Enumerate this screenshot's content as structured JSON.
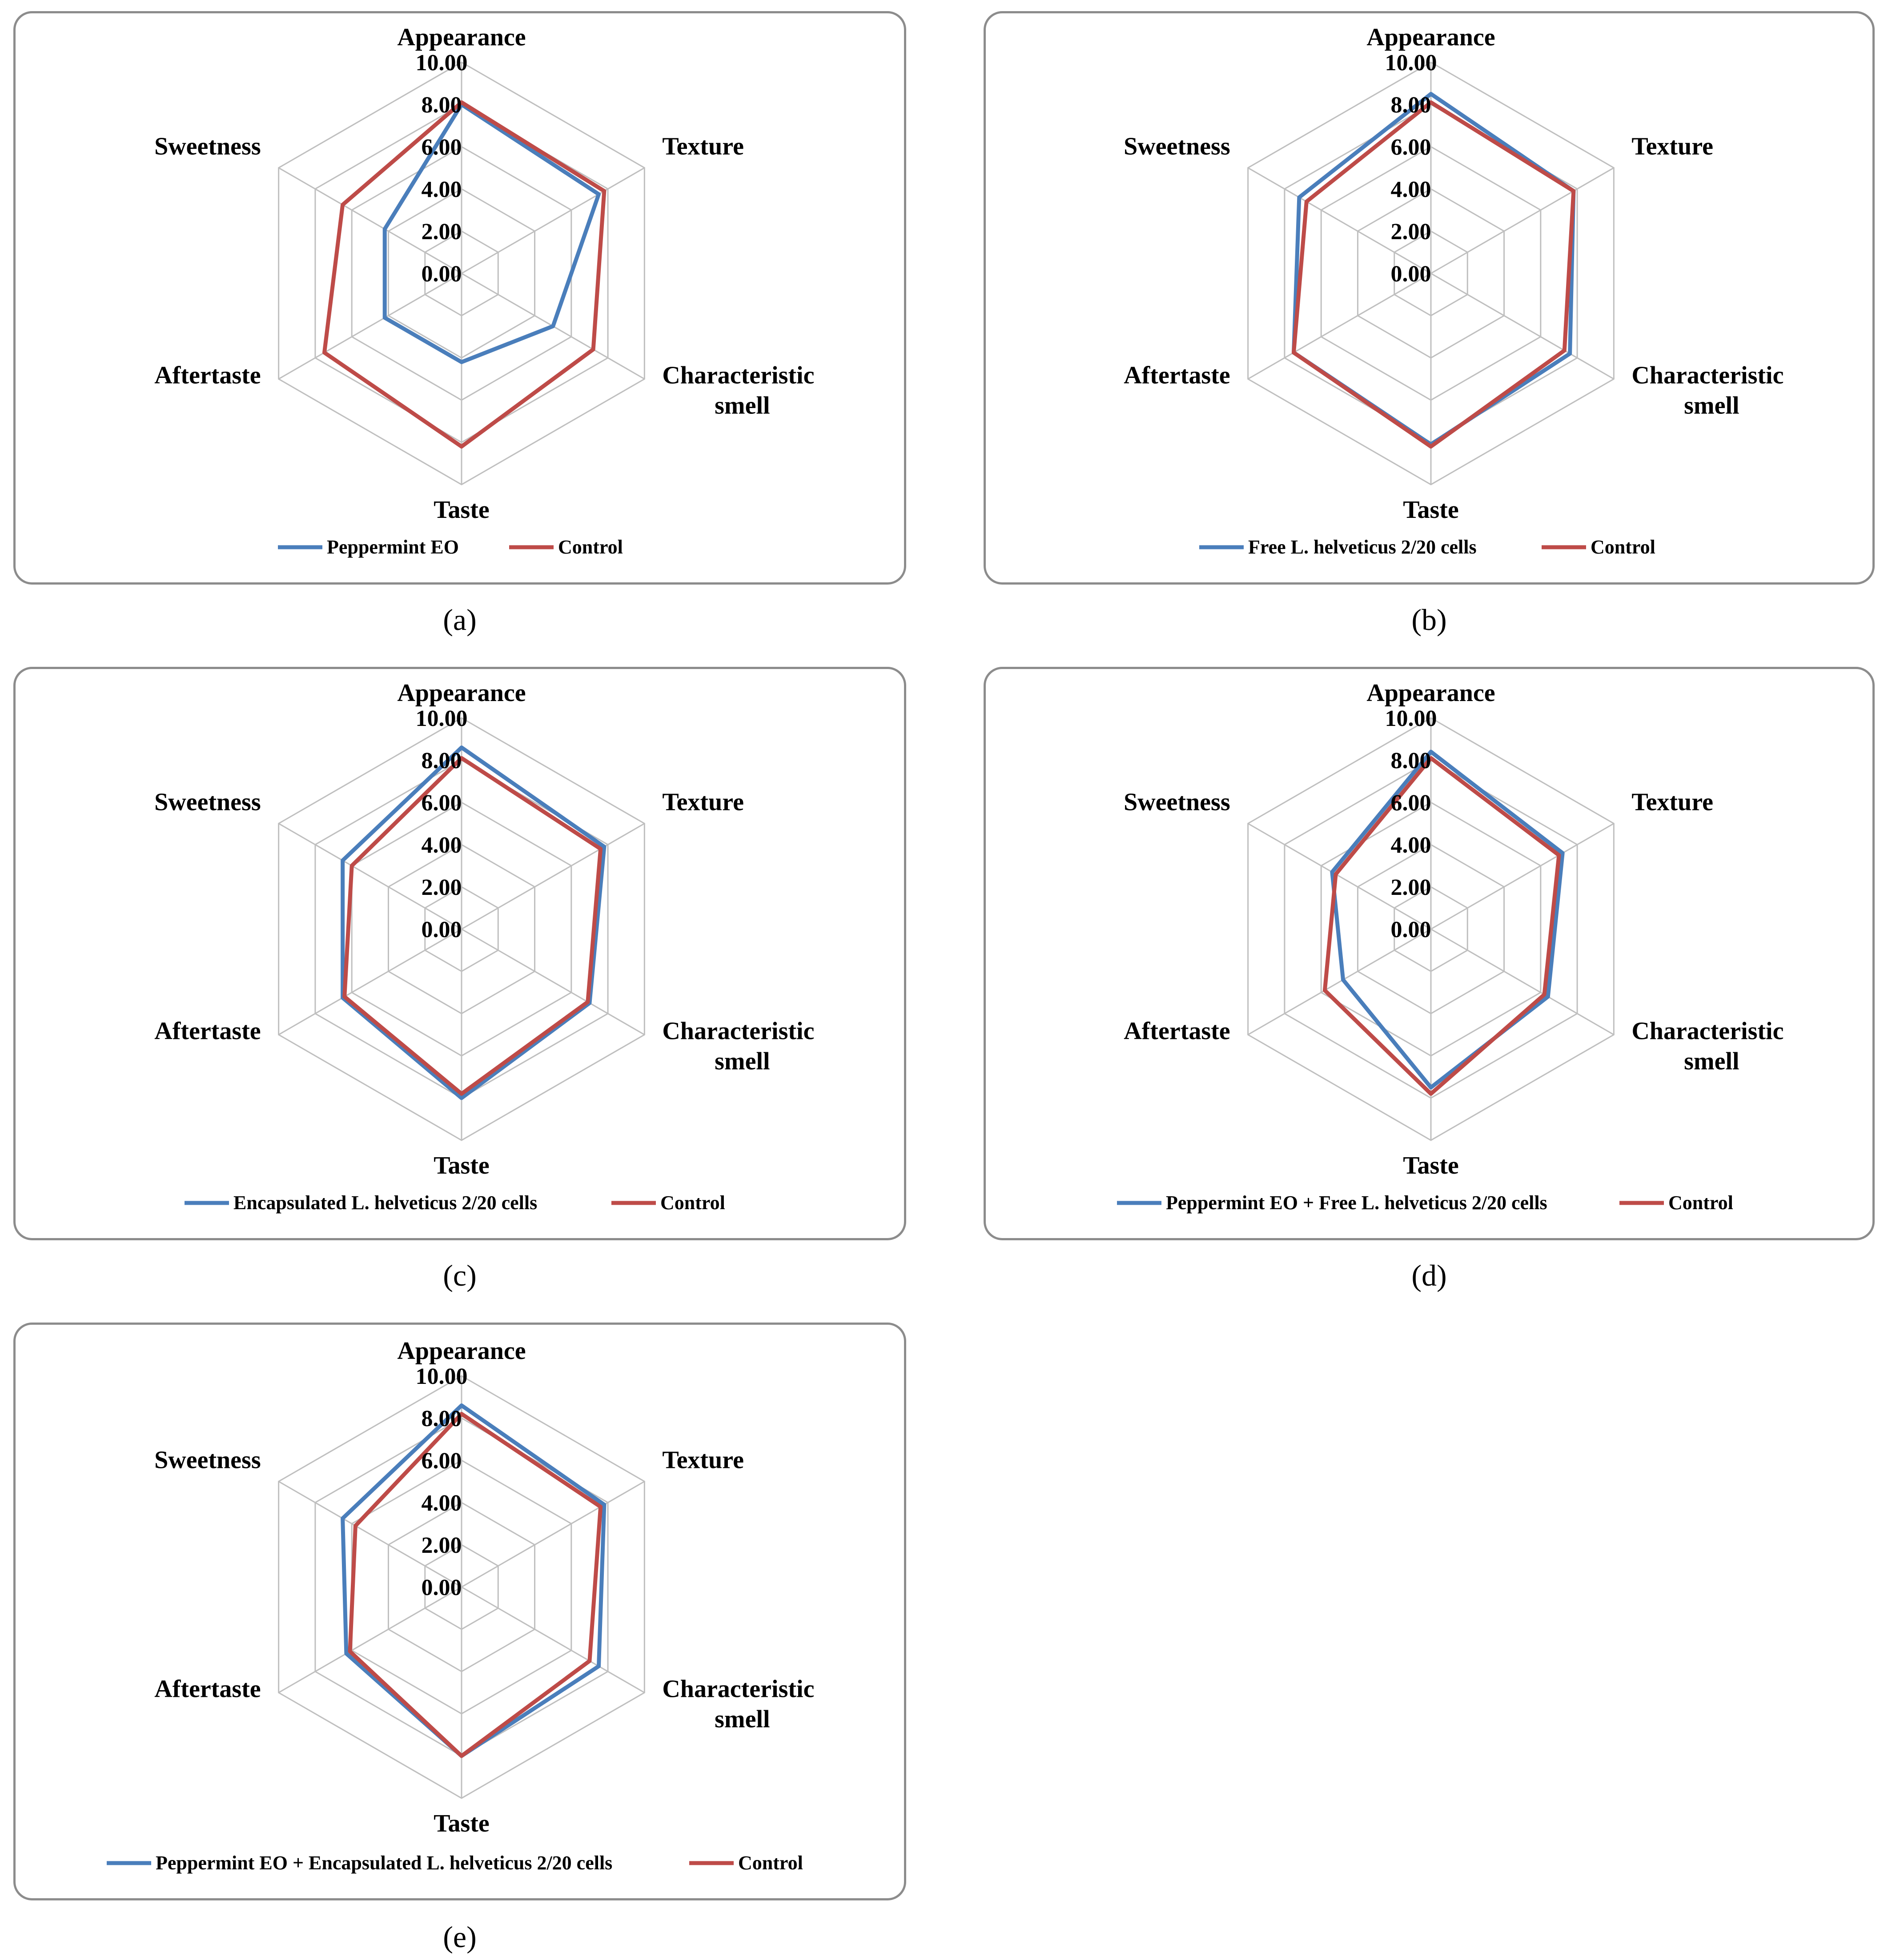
{
  "colors": {
    "series": "#4a7ebb",
    "control": "#be4b48",
    "grid": "#bfbfbf",
    "frame": "#8c8c8c"
  },
  "chart_data": [
    {
      "panel": "a",
      "type": "radar",
      "axes": [
        "Appearance",
        "Texture",
        "Characteristic smell",
        "Taste",
        "Aftertaste",
        "Sweetness"
      ],
      "ticks": [
        "0.00",
        "2.00",
        "4.00",
        "6.00",
        "8.00",
        "10.00"
      ],
      "rlim": [
        0,
        10
      ],
      "series": [
        {
          "name": "Peppermint EO",
          "values": [
            8.0,
            7.5,
            5.0,
            4.2,
            4.2,
            4.2
          ]
        },
        {
          "name": "Control",
          "values": [
            8.1,
            7.8,
            7.2,
            8.2,
            7.5,
            6.5
          ]
        }
      ]
    },
    {
      "panel": "b",
      "type": "radar",
      "axes": [
        "Appearance",
        "Texture",
        "Characteristic smell",
        "Taste",
        "Aftertaste",
        "Sweetness"
      ],
      "ticks": [
        "0.00",
        "2.00",
        "4.00",
        "6.00",
        "8.00",
        "10.00"
      ],
      "rlim": [
        0,
        10
      ],
      "series": [
        {
          "name": "Free L. helveticus 2/20 cells",
          "values": [
            8.5,
            7.8,
            7.6,
            8.1,
            7.5,
            7.2
          ]
        },
        {
          "name": "Control",
          "values": [
            8.1,
            7.8,
            7.3,
            8.2,
            7.5,
            6.8
          ]
        }
      ]
    },
    {
      "panel": "c",
      "type": "radar",
      "axes": [
        "Appearance",
        "Texture",
        "Characteristic smell",
        "Taste",
        "Aftertaste",
        "Sweetness"
      ],
      "ticks": [
        "0.00",
        "2.00",
        "4.00",
        "6.00",
        "8.00",
        "10.00"
      ],
      "rlim": [
        0,
        10
      ],
      "series": [
        {
          "name": "Encapsulated L. helveticus 2/20 cells",
          "values": [
            8.6,
            7.8,
            7.0,
            8.0,
            6.5,
            6.5
          ]
        },
        {
          "name": "Control",
          "values": [
            8.1,
            7.6,
            6.9,
            7.8,
            6.4,
            6.0
          ]
        }
      ]
    },
    {
      "panel": "d",
      "type": "radar",
      "axes": [
        "Appearance",
        "Texture",
        "Characteristic smell",
        "Taste",
        "Aftertaste",
        "Sweetness"
      ],
      "ticks": [
        "0.00",
        "2.00",
        "4.00",
        "6.00",
        "8.00",
        "10.00"
      ],
      "rlim": [
        0,
        10
      ],
      "series": [
        {
          "name": "Peppermint EO + Free L. helveticus 2/20 cells",
          "values": [
            8.4,
            7.2,
            6.4,
            7.5,
            4.8,
            5.4
          ]
        },
        {
          "name": "Control",
          "values": [
            8.1,
            7.0,
            6.2,
            7.8,
            5.8,
            5.2
          ]
        }
      ]
    },
    {
      "panel": "e",
      "type": "radar",
      "axes": [
        "Appearance",
        "Texture",
        "Characteristic smell",
        "Taste",
        "Aftertaste",
        "Sweetness"
      ],
      "ticks": [
        "0.00",
        "2.00",
        "4.00",
        "6.00",
        "8.00",
        "10.00"
      ],
      "rlim": [
        0,
        10
      ],
      "series": [
        {
          "name": "Peppermint EO + Encapsulated L. helveticus 2/20 cells",
          "values": [
            8.6,
            7.8,
            7.5,
            8.0,
            6.3,
            6.5
          ]
        },
        {
          "name": "Control",
          "values": [
            8.2,
            7.6,
            7.0,
            8.0,
            6.1,
            5.8
          ]
        }
      ]
    }
  ],
  "captions": {
    "a": "(a)",
    "b": "(b)",
    "c": "(c)",
    "d": "(d)",
    "e": "(e)"
  }
}
